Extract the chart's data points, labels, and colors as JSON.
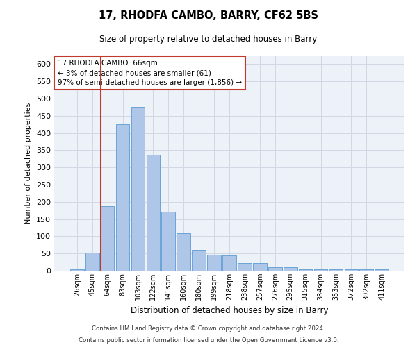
{
  "title": "17, RHODFA CAMBO, BARRY, CF62 5BS",
  "subtitle": "Size of property relative to detached houses in Barry",
  "xlabel": "Distribution of detached houses by size in Barry",
  "ylabel": "Number of detached properties",
  "footnote1": "Contains HM Land Registry data © Crown copyright and database right 2024.",
  "footnote2": "Contains public sector information licensed under the Open Government Licence v3.0.",
  "bar_labels": [
    "26sqm",
    "45sqm",
    "64sqm",
    "83sqm",
    "103sqm",
    "122sqm",
    "141sqm",
    "160sqm",
    "180sqm",
    "199sqm",
    "218sqm",
    "238sqm",
    "257sqm",
    "276sqm",
    "295sqm",
    "315sqm",
    "334sqm",
    "353sqm",
    "372sqm",
    "392sqm",
    "411sqm"
  ],
  "bar_values": [
    5,
    52,
    187,
    425,
    475,
    337,
    172,
    108,
    61,
    46,
    44,
    22,
    22,
    10,
    10,
    4,
    4,
    4,
    4,
    4,
    4
  ],
  "bar_color": "#aec6e8",
  "bar_edge_color": "#5b9bd5",
  "grid_color": "#d0d8e4",
  "background_color": "#edf2f9",
  "vline_color": "#c0392b",
  "annotation_line1": "17 RHODFA CAMBO: 66sqm",
  "annotation_line2": "← 3% of detached houses are smaller (61)",
  "annotation_line3": "97% of semi-detached houses are larger (1,856) →",
  "annotation_box_color": "#c0392b",
  "ylim": [
    0,
    625
  ],
  "yticks": [
    0,
    50,
    100,
    150,
    200,
    250,
    300,
    350,
    400,
    450,
    500,
    550,
    600
  ]
}
